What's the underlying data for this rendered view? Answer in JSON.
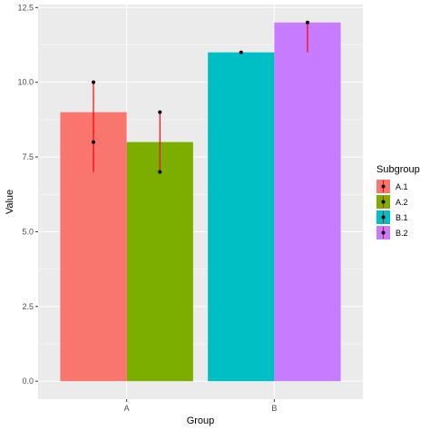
{
  "chart_data": {
    "type": "bar",
    "xlabel": "Group",
    "ylabel": "Value",
    "ylim": [
      -0.6,
      12.6
    ],
    "yticks": [
      "0.0",
      "2.5",
      "5.0",
      "7.5",
      "10.0",
      "12.5"
    ],
    "ytick_values": [
      0,
      2.5,
      5,
      7.5,
      10,
      12.5
    ],
    "categories": [
      "A",
      "B"
    ],
    "grid": true,
    "legend": {
      "title": "Subgroup",
      "placement": "right",
      "entries": [
        "A.1",
        "A.2",
        "B.1",
        "B.2"
      ]
    },
    "bars": [
      {
        "group": "A",
        "subgroup": "A.1",
        "value": 9,
        "color": "#F8766D",
        "err_low": 7,
        "err_high": 10,
        "points": [
          10,
          8
        ]
      },
      {
        "group": "A",
        "subgroup": "A.2",
        "value": 8,
        "color": "#7CAE00",
        "err_low": 7,
        "err_high": 9,
        "points": [
          9,
          7
        ]
      },
      {
        "group": "B",
        "subgroup": "B.1",
        "value": 11,
        "color": "#00BFC4",
        "err_low": 11,
        "err_high": 11,
        "points": [
          11
        ]
      },
      {
        "group": "B",
        "subgroup": "B.2",
        "value": 12,
        "color": "#C77CFF",
        "err_low": 11,
        "err_high": 12,
        "points": [
          12
        ]
      }
    ],
    "error_bar_color": "#FF0000",
    "point_color": "#000000"
  }
}
